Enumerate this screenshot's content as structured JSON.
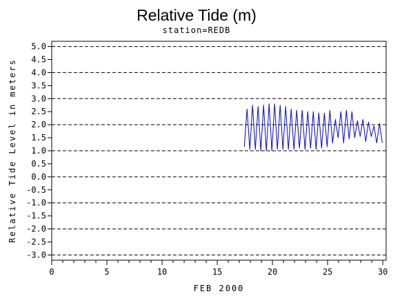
{
  "chart_data": {
    "type": "line",
    "title": "Relative Tide (m)",
    "subtitle": "station=REDB",
    "xlabel": "FEB 2000",
    "ylabel": "Relative Tide Level in meters",
    "xlim": [
      0,
      30.3
    ],
    "ylim": [
      -3.2,
      5.2
    ],
    "x_ticks": [
      0,
      5,
      10,
      15,
      20,
      25,
      30
    ],
    "x_tick_labels": [
      "0",
      "5",
      "10",
      "15",
      "20",
      "25",
      "30"
    ],
    "x_minor_step": 1,
    "y_ticks": [
      5.0,
      4.5,
      4.0,
      3.5,
      3.0,
      2.5,
      2.0,
      1.5,
      1.0,
      0.5,
      0.0,
      -0.5,
      -1.0,
      -1.5,
      -2.0,
      -2.5,
      -3.0
    ],
    "y_tick_labels": [
      "5.0",
      "4.5",
      "4.0",
      "3.5",
      "3.0",
      "2.5",
      "2.0",
      "1.5",
      "1.0",
      "0.5",
      "0.0",
      "-0.5",
      "-1.0",
      "-1.5",
      "-2.0",
      "-2.5",
      "-3.0"
    ],
    "gridlines_y": [
      5.0,
      4.0,
      3.0,
      2.0,
      1.0,
      0.0,
      -1.0,
      -2.0,
      -3.0
    ],
    "grid_style": "dashed horizontal",
    "series": [
      {
        "color": "#0000cc",
        "x": [
          17.45,
          17.7,
          17.95,
          18.2,
          18.45,
          18.7,
          18.95,
          19.2,
          19.45,
          19.7,
          19.95,
          20.2,
          20.45,
          20.7,
          20.95,
          21.2,
          21.45,
          21.7,
          21.95,
          22.2,
          22.45,
          22.7,
          22.95,
          23.2,
          23.45,
          23.7,
          23.95,
          24.2,
          24.45,
          24.7,
          24.95,
          25.2,
          25.45,
          25.7,
          25.95,
          26.2,
          26.45,
          26.7,
          26.95,
          27.2,
          27.45,
          27.7,
          27.95,
          28.2,
          28.45,
          28.7,
          28.95,
          29.2,
          29.45,
          29.7,
          29.95
        ],
        "y": [
          1.15,
          2.6,
          1.05,
          2.75,
          1.05,
          2.7,
          1.0,
          2.75,
          1.0,
          2.8,
          1.0,
          2.8,
          1.05,
          2.75,
          1.05,
          2.7,
          1.05,
          2.6,
          1.05,
          2.55,
          1.1,
          2.55,
          1.05,
          2.5,
          1.1,
          2.5,
          1.05,
          2.45,
          1.1,
          2.45,
          1.15,
          2.55,
          1.3,
          2.2,
          1.5,
          2.5,
          1.3,
          2.55,
          1.45,
          2.5,
          1.5,
          2.15,
          1.55,
          2.2,
          1.35,
          2.1,
          1.55,
          1.95,
          1.3,
          2.05,
          1.3
        ]
      }
    ]
  }
}
